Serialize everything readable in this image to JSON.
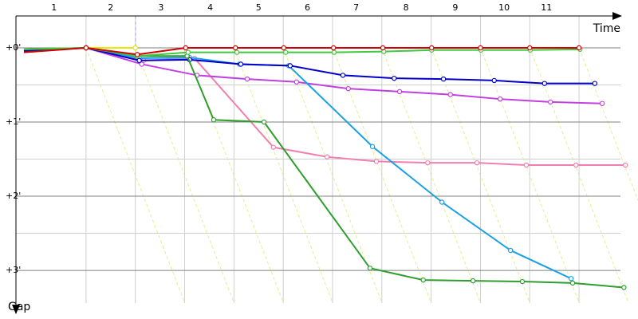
{
  "chart_data": {
    "type": "line",
    "x_label": "Time",
    "y_label": "Gap",
    "xlim": [
      -0.26,
      11.84
    ],
    "ylim": [
      -0.43,
      3.44
    ],
    "xticks": [
      {
        "value": 0.35,
        "label": "1"
      },
      {
        "value": 1.5,
        "label": "2"
      },
      {
        "value": 2.52,
        "label": "3"
      },
      {
        "value": 3.52,
        "label": "4"
      },
      {
        "value": 4.5,
        "label": "5"
      },
      {
        "value": 5.49,
        "label": "6"
      },
      {
        "value": 6.48,
        "label": "7"
      },
      {
        "value": 7.49,
        "label": "8"
      },
      {
        "value": 8.49,
        "label": "9"
      },
      {
        "value": 9.48,
        "label": "10"
      },
      {
        "value": 10.34,
        "label": "11"
      }
    ],
    "x_gridlines": [
      1,
      2,
      3,
      4,
      5,
      6,
      7,
      8,
      9,
      10,
      11
    ],
    "yticks": [
      {
        "value": 0,
        "label": "+0'"
      },
      {
        "value": 1,
        "label": "+1'"
      },
      {
        "value": 2,
        "label": "+2'"
      },
      {
        "value": 3,
        "label": "+3'"
      }
    ],
    "minor_yticks": [
      0.5,
      1.5,
      2.5
    ],
    "y_inverted": true,
    "series": [
      {
        "color": "#e8e800",
        "x": [
          -0.26,
          1,
          2.0
        ],
        "values": [
          0.02,
          0,
          0
        ]
      },
      {
        "color": "#f080b0",
        "x": [
          -0.26,
          1,
          2.17,
          3.2,
          4.8,
          5.89,
          6.89,
          7.93,
          8.93,
          9.93,
          10.94,
          11.94
        ],
        "values": [
          0.05,
          0,
          0.17,
          0.14,
          1.34,
          1.47,
          1.53,
          1.55,
          1.55,
          1.58,
          1.58,
          1.58
        ]
      },
      {
        "color": "#c040e0",
        "x": [
          -0.26,
          1,
          2.13,
          3.25,
          4.27,
          5.27,
          6.32,
          7.36,
          8.39,
          9.4,
          10.42,
          11.47
        ],
        "values": [
          0.04,
          0,
          0.22,
          0.37,
          0.42,
          0.46,
          0.55,
          0.59,
          0.63,
          0.69,
          0.73,
          0.75
        ]
      },
      {
        "color": "#1aa0e6",
        "x": [
          -0.26,
          1,
          2.08,
          3.1,
          4.11,
          5.11,
          6.81,
          8.22,
          9.61,
          10.84
        ],
        "values": [
          0.04,
          0,
          0.14,
          0.13,
          0.22,
          0.24,
          1.33,
          2.08,
          2.73,
          3.11
        ]
      },
      {
        "color": "#0000c8",
        "x": [
          -0.26,
          1,
          2.08,
          3.1,
          4.14,
          5.14,
          6.21,
          7.25,
          8.25,
          9.28,
          10.3,
          11.32
        ],
        "values": [
          0.04,
          0,
          0.17,
          0.16,
          0.22,
          0.24,
          0.37,
          0.41,
          0.42,
          0.44,
          0.48,
          0.48
        ]
      },
      {
        "color": "#2e9e2e",
        "x": [
          -0.26,
          1,
          2.04,
          3.05,
          3.59,
          4.61,
          6.76,
          7.84,
          8.85,
          9.85,
          10.87,
          11.91
        ],
        "values": [
          0.02,
          0,
          0.11,
          0.11,
          0.97,
          1.0,
          2.97,
          3.13,
          3.14,
          3.15,
          3.17,
          3.23
        ]
      },
      {
        "color": "#40c840",
        "x": [
          -0.26,
          1,
          2.04,
          3.07,
          4.06,
          5.05,
          6.03,
          7.04,
          8.01,
          9.01,
          10.01,
          11.02
        ],
        "values": [
          0.02,
          0,
          0.11,
          0.06,
          0.06,
          0.06,
          0.06,
          0.05,
          0.03,
          0.03,
          0.03,
          0.02
        ]
      },
      {
        "color": "#d00000",
        "x": [
          -0.26,
          1,
          2.04,
          3.02,
          4.03,
          5.01,
          6.02,
          7.02,
          8.01,
          9.0,
          10.0,
          11.0
        ],
        "values": [
          0.06,
          0,
          0.09,
          0,
          0,
          0,
          0,
          0,
          0,
          0,
          0,
          0
        ]
      }
    ]
  }
}
